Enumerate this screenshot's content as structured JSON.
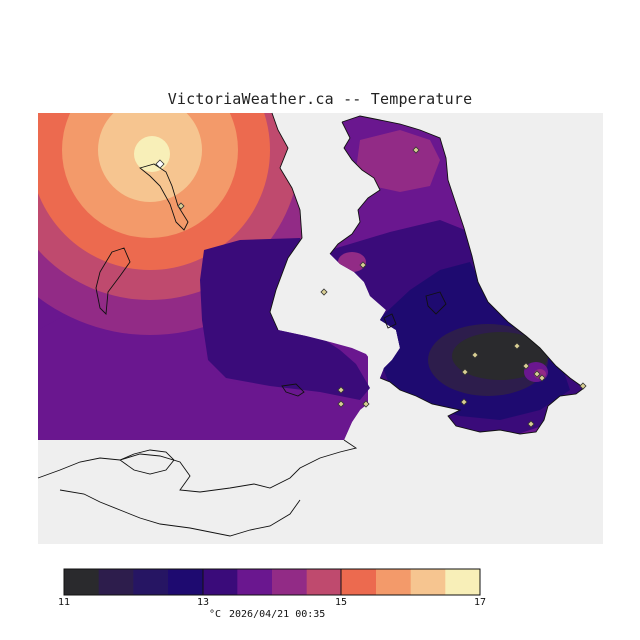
{
  "title": "VictoriaWeather.ca -- Temperature",
  "colorbar": {
    "min": 11,
    "max": 17,
    "labels": [
      {
        "value": 11,
        "text": "11"
      },
      {
        "value": 13,
        "text": "13"
      },
      {
        "value": 15,
        "text": "15"
      },
      {
        "value": 17,
        "text": "17"
      }
    ],
    "unit": "°C",
    "colors": [
      "#2a2a2d",
      "#2d1d4c",
      "#261563",
      "#1e0a70",
      "#3a0b7a",
      "#6a178f",
      "#922b86",
      "#bf4a6e",
      "#ec6a4f",
      "#f39a6a",
      "#f6c590",
      "#f8efb8"
    ]
  },
  "timestamp": "2026/04/21 00:35",
  "map": {
    "background": "#efefef",
    "warm_peak_temperature": 17,
    "cold_core_temperature": 11.5,
    "stations": 17
  }
}
